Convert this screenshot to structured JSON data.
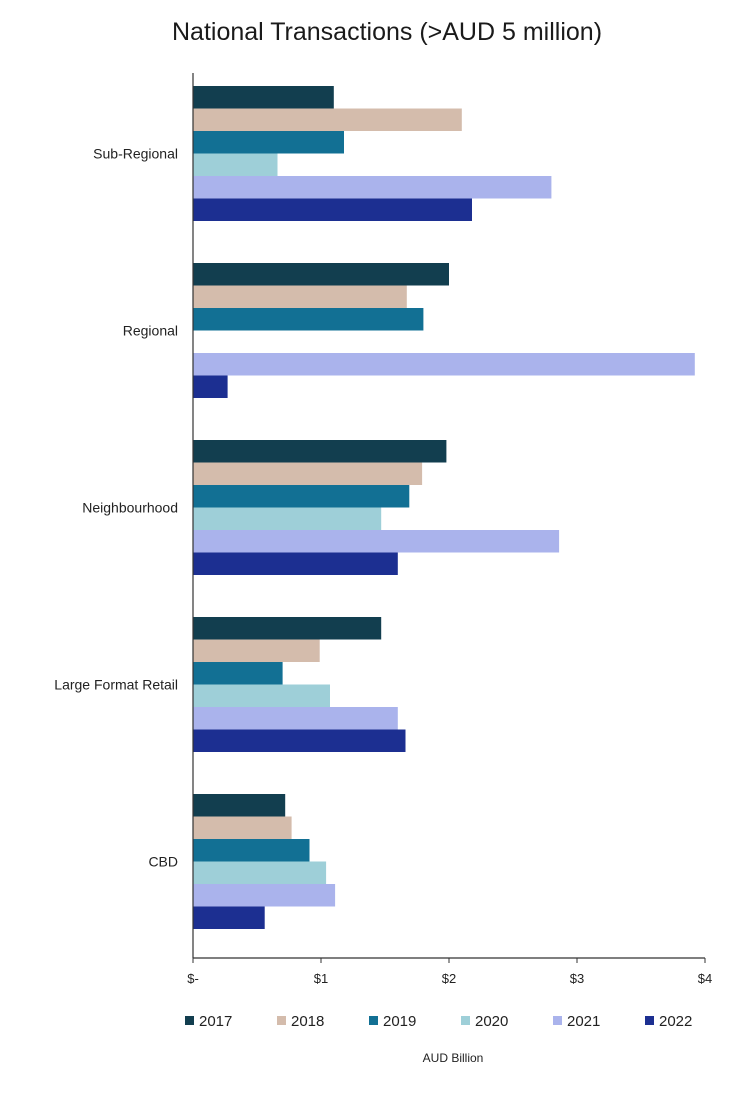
{
  "chart_data": {
    "type": "bar",
    "orientation": "horizontal",
    "title": "National Transactions (>AUD 5 million)",
    "xlabel": "AUD Billion",
    "ylabel": "",
    "xlim": [
      0,
      4
    ],
    "x_ticks": [
      0,
      1,
      2,
      3,
      4
    ],
    "x_tick_labels": [
      "$-",
      "$1",
      "$2",
      "$3",
      "$4"
    ],
    "categories": [
      "Sub-Regional",
      "Regional",
      "Neighbourhood",
      "Large Format Retail",
      "CBD"
    ],
    "series": [
      {
        "name": "2017",
        "color": "#123e4f",
        "values": [
          1.1,
          2.0,
          1.98,
          1.47,
          0.72
        ]
      },
      {
        "name": "2018",
        "color": "#d4bcac",
        "values": [
          2.1,
          1.67,
          1.79,
          0.99,
          0.77
        ]
      },
      {
        "name": "2019",
        "color": "#127094",
        "values": [
          1.18,
          1.8,
          1.69,
          0.7,
          0.91
        ]
      },
      {
        "name": "2020",
        "color": "#9ecfd8",
        "values": [
          0.66,
          0,
          1.47,
          1.07,
          1.04
        ]
      },
      {
        "name": "2021",
        "color": "#aab3ec",
        "values": [
          2.8,
          3.92,
          2.86,
          1.6,
          1.11
        ]
      },
      {
        "name": "2022",
        "color": "#1c2f91",
        "values": [
          2.18,
          0.27,
          1.6,
          1.66,
          0.56
        ]
      }
    ],
    "grid": false,
    "legend_position": "bottom"
  }
}
